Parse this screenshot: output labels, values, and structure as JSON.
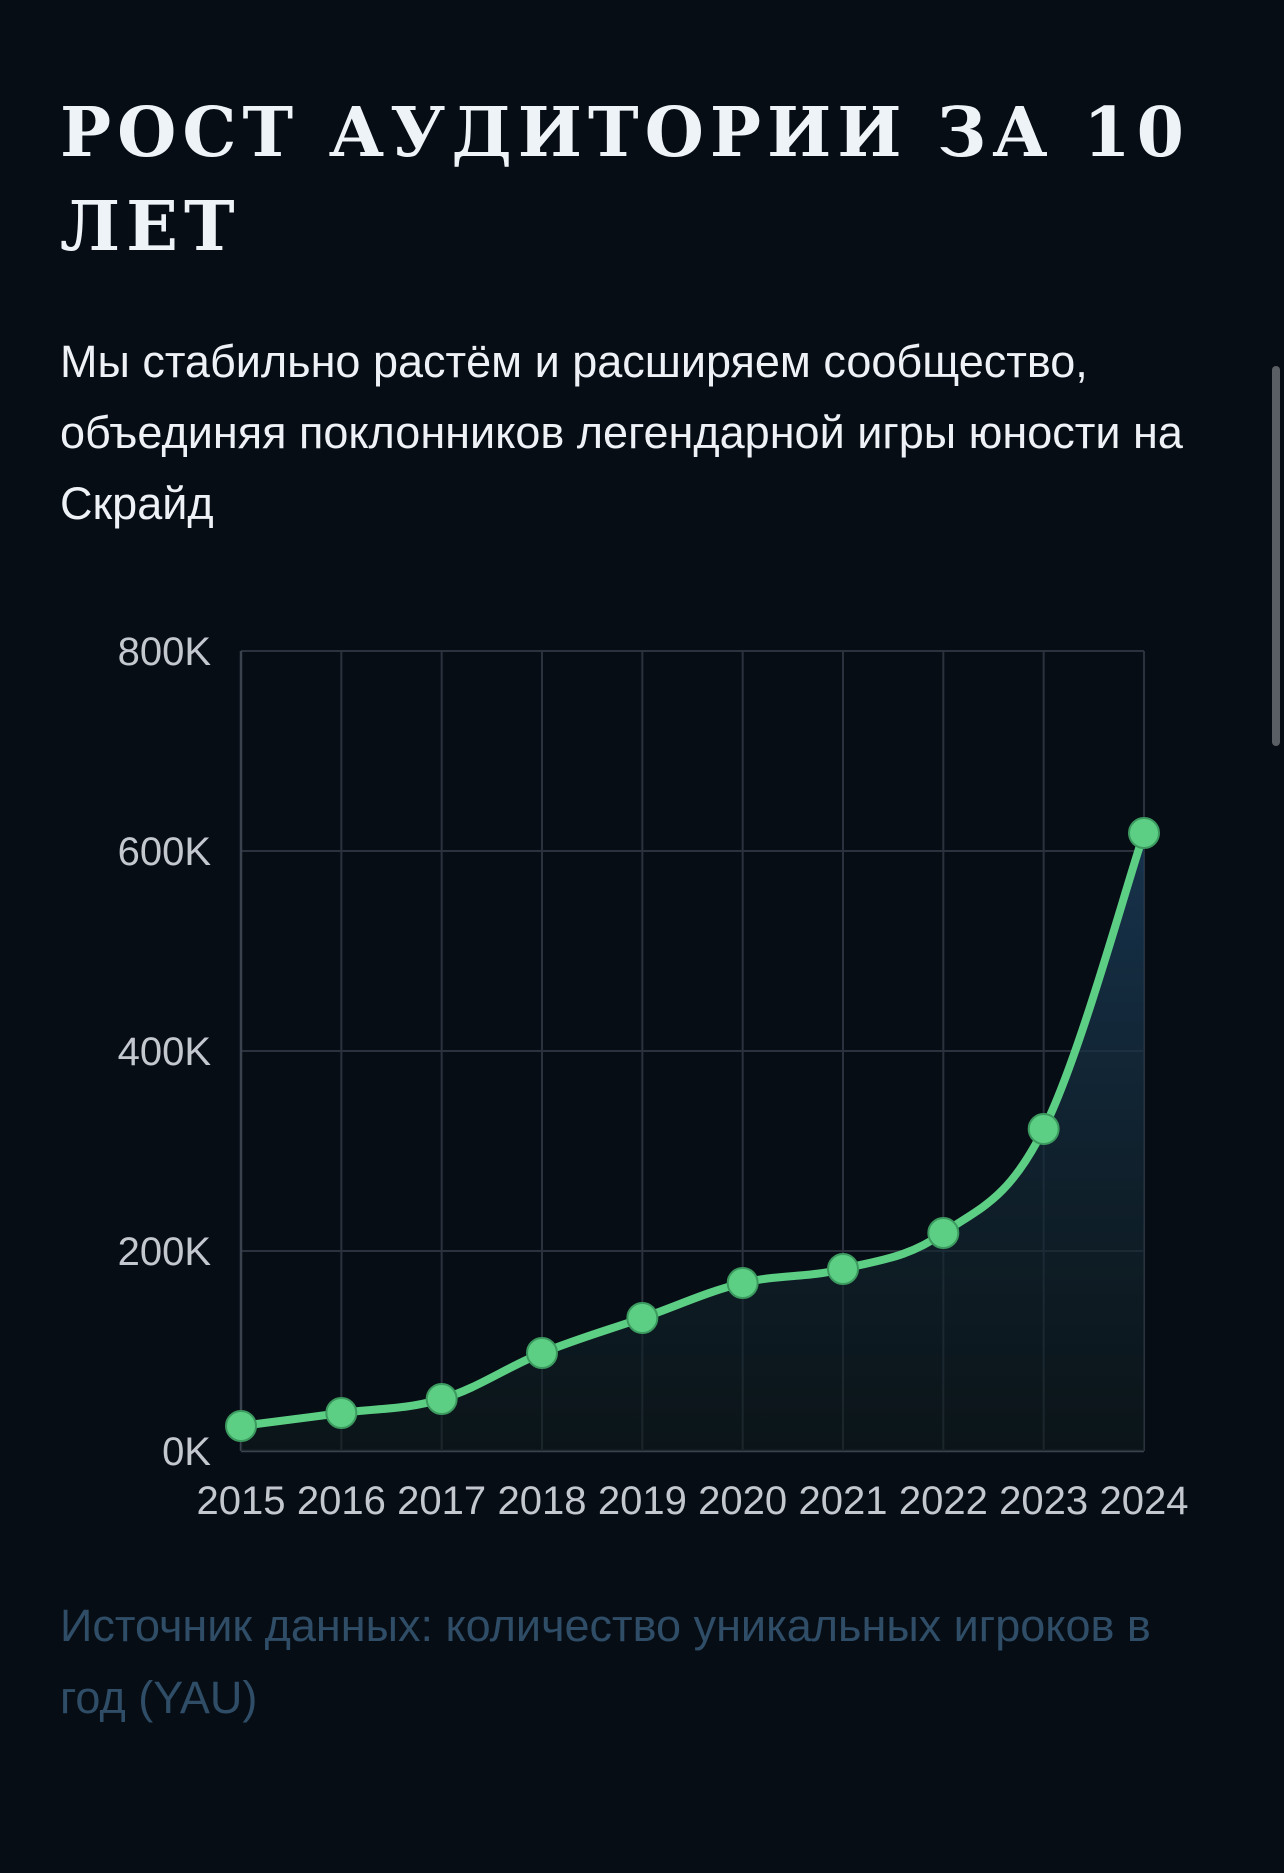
{
  "header": {
    "title": "РОСТ АУДИТОРИИ ЗА 10 ЛЕТ",
    "subtitle": "Мы стабильно растём и расширяем сообщество, объединяя поклонников легендарной игры юности на Скрайд"
  },
  "footer": {
    "note": "Источник данных: количество уникальных игроков в год (YAU)"
  },
  "colors": {
    "background": "#070d15",
    "line": "#5ccf85",
    "grid": "#2b323d",
    "tick_text": "#c3c8cf",
    "note_text": "#2f4d66"
  },
  "chart_data": {
    "type": "line",
    "title": "",
    "xlabel": "",
    "ylabel": "",
    "categories": [
      "2015",
      "2016",
      "2017",
      "2018",
      "2019",
      "2020",
      "2021",
      "2022",
      "2023",
      "2024"
    ],
    "values": [
      25000,
      38000,
      52000,
      98000,
      133000,
      168000,
      182000,
      218000,
      322000,
      618000
    ],
    "ylim": [
      0,
      800000
    ],
    "yticks": [
      0,
      200000,
      400000,
      600000,
      800000
    ],
    "ytick_labels": [
      "0K",
      "200K",
      "400K",
      "600K",
      "800K"
    ],
    "grid": true,
    "smooth": true,
    "area_fill": true,
    "legend": "none"
  }
}
